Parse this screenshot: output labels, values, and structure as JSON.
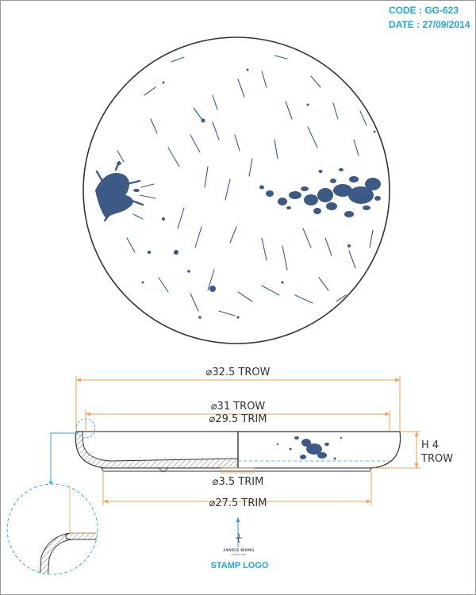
{
  "header": {
    "code": "CODE : GG-623",
    "date": "DATE : 27/09/2014"
  },
  "dimensions": {
    "outer_diameter": "⌀32.5 TROW",
    "trow_diameter": "⌀31 TROW",
    "trim_diameter": "⌀29.5 TRIM",
    "foot_trim": "⌀3.5 TRIM",
    "base_trim": "⌀27.5 TRIM",
    "height_label": "H 4",
    "height_unit": "TROW"
  },
  "stamp": {
    "brand": "JANICE WONG",
    "sub": "SINGAPORE",
    "label": "STAMP LOGO"
  },
  "colors": {
    "splatter": "#3c5a85",
    "dimension": "#f0a050",
    "annotation": "#1fa6e0",
    "outline": "#333333"
  }
}
